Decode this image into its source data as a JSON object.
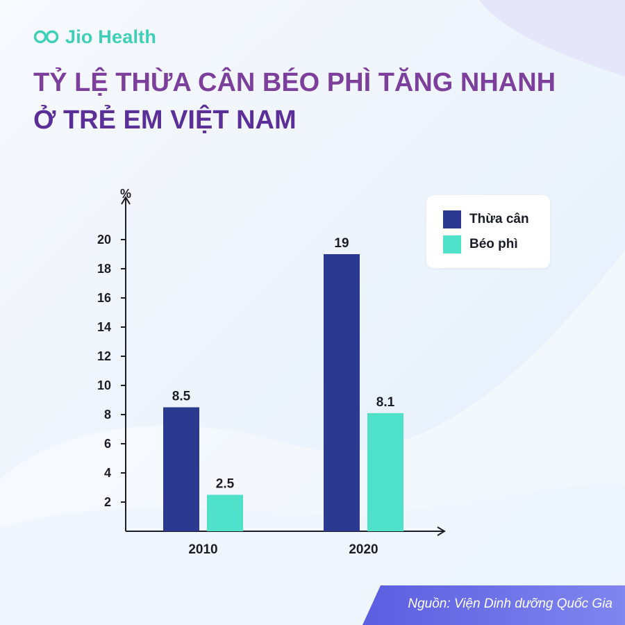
{
  "brand": {
    "name": "Jio Health",
    "icon": "infinity-logo-icon",
    "color": "#3ecfb7"
  },
  "title": {
    "line1": "TỶ LỆ THỪA CÂN BÉO PHÌ TĂNG NHANH",
    "line2": "Ở TRẺ EM VIỆT NAM"
  },
  "source": "Nguồn: Viện Dinh dưỡng Quốc Gia",
  "chart_data": {
    "type": "bar",
    "categories": [
      "2010",
      "2020"
    ],
    "series": [
      {
        "name": "Thừa cân",
        "values": [
          8.5,
          19
        ],
        "labels": [
          "8.5",
          "19"
        ],
        "color": "#2b3990"
      },
      {
        "name": "Béo phì",
        "values": [
          2.5,
          8.1
        ],
        "labels": [
          "2.5",
          "8.1"
        ],
        "color": "#4fe1c9"
      }
    ],
    "title": "",
    "xlabel": "",
    "ylabel": "%",
    "ylim": [
      0,
      20
    ],
    "yticks": [
      2,
      4,
      6,
      8,
      10,
      12,
      14,
      16,
      18,
      20
    ],
    "grid": false,
    "legend_position": "top-right"
  }
}
